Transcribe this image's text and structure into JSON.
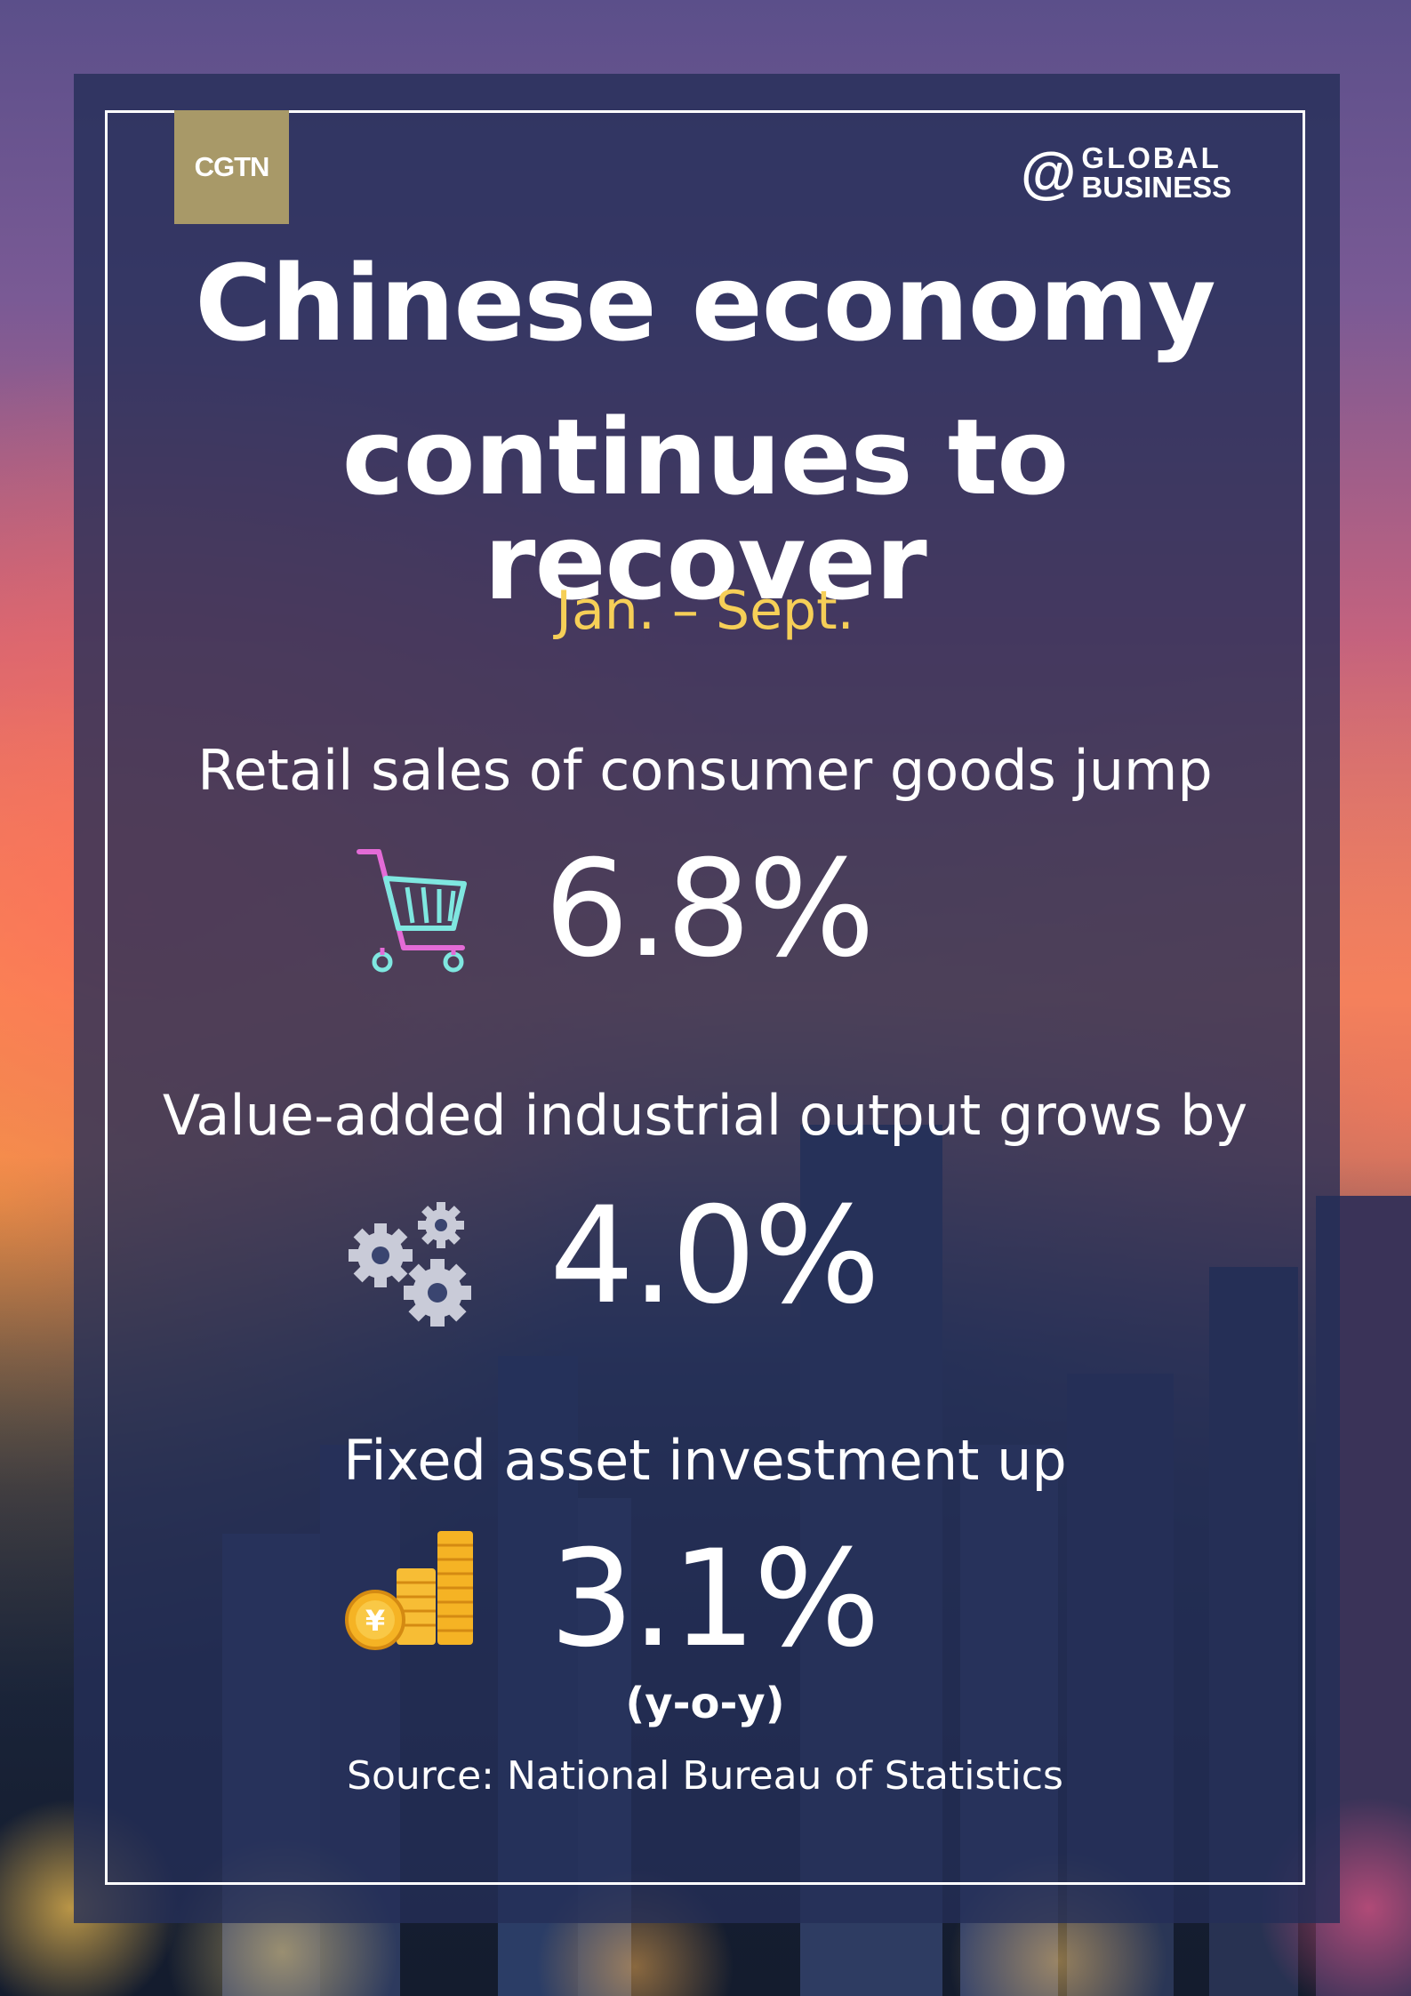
{
  "brand": {
    "left_logo": "CGTN",
    "right_logo_at": "@",
    "right_logo_line1": "GLOBAL",
    "right_logo_line2": "BUSINESS"
  },
  "headline": {
    "line1": "Chinese economy",
    "line2": "continues to recover"
  },
  "period": "Jan. – Sept.",
  "stats": [
    {
      "label": "Retail sales of consumer goods jump",
      "value": "6.8%",
      "icon": "shopping-cart-icon"
    },
    {
      "label": "Value-added industrial output grows by",
      "value": "4.0%",
      "icon": "gears-icon"
    },
    {
      "label": "Fixed asset investment up",
      "value": "3.1%",
      "icon": "coin-stacks-icon"
    }
  ],
  "note": "(y-o-y)",
  "source": "Source: National Bureau of Statistics",
  "colors": {
    "panel": "#242e58",
    "accent_yellow": "#f6cf57",
    "cgtn_gold": "#a89968",
    "cart_pink": "#e36bd6",
    "cart_cyan": "#7fe7e0",
    "gear_gray": "#c9cbd8",
    "coin_gold": "#f5b324"
  }
}
